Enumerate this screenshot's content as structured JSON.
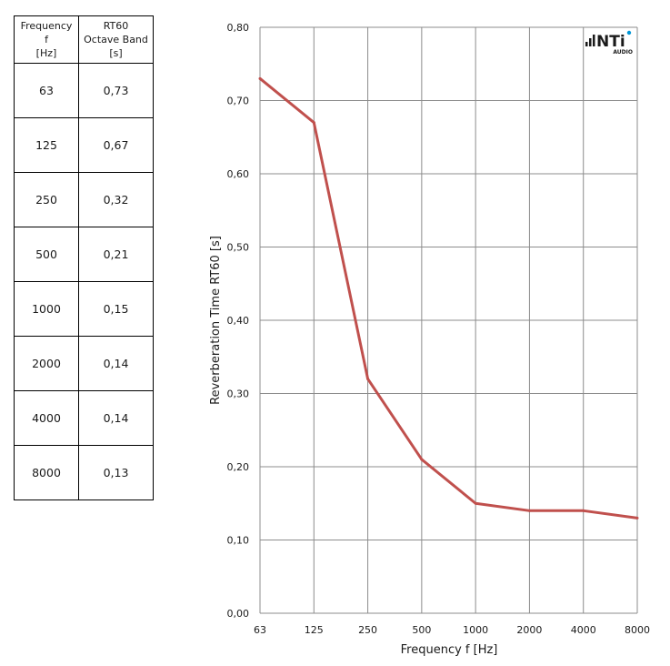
{
  "table": {
    "headers": [
      [
        "Frequency",
        "f",
        "[Hz]"
      ],
      [
        "RT60",
        "Octave Band",
        "[s]"
      ]
    ],
    "rows": [
      [
        "63",
        "0,73"
      ],
      [
        "125",
        "0,67"
      ],
      [
        "250",
        "0,32"
      ],
      [
        "500",
        "0,21"
      ],
      [
        "1000",
        "0,15"
      ],
      [
        "2000",
        "0,14"
      ],
      [
        "4000",
        "0,14"
      ],
      [
        "8000",
        "0,13"
      ]
    ]
  },
  "logo": {
    "text": "NTi",
    "subtext": "AUDIO"
  },
  "chart_data": {
    "type": "line",
    "categories": [
      "63",
      "125",
      "250",
      "500",
      "1000",
      "2000",
      "4000",
      "8000"
    ],
    "series": [
      {
        "values": [
          0.73,
          0.67,
          0.32,
          0.21,
          0.15,
          0.14,
          0.14,
          0.13
        ],
        "color": "#c0504d"
      }
    ],
    "xlabel": "Frequency f [Hz]",
    "ylabel": "Reverberation Time RT60 [s]",
    "ylim": [
      0,
      0.8
    ],
    "yticks": [
      "0,00",
      "0,10",
      "0,20",
      "0,30",
      "0,40",
      "0,50",
      "0,60",
      "0,70",
      "0,80"
    ],
    "grid": true
  }
}
